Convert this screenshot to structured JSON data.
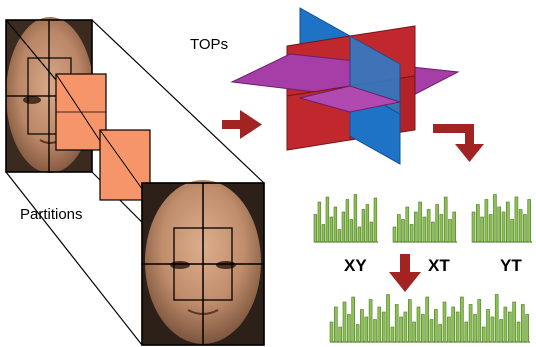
{
  "labels": {
    "tops": "TOPs",
    "partitions": "Partitions",
    "planes": [
      "XY",
      "XT",
      "YT"
    ]
  },
  "colors": {
    "face_skin": "#b98666",
    "face_dark": "#6e4a34",
    "partition_fill": "#f7956a",
    "plane_red": "#c0282e",
    "plane_blue": "#1f73c6",
    "plane_purple": "#a73ea7",
    "arrow": "#a32323",
    "histogram_bar": "#8cc153",
    "histogram_bar_dark": "#4f7a29"
  },
  "histograms": {
    "xy": [
      0.55,
      0.8,
      0.35,
      0.9,
      0.5,
      0.7,
      0.25,
      0.6,
      0.85,
      0.45,
      0.95,
      0.3,
      0.65,
      0.75,
      0.4,
      0.88
    ],
    "xt": [
      0.3,
      0.55,
      0.45,
      0.7,
      0.35,
      0.6,
      0.8,
      0.5,
      0.65,
      0.4,
      0.75,
      0.55,
      0.9,
      0.45,
      0.6
    ],
    "yt": [
      0.6,
      0.75,
      0.5,
      0.85,
      0.55,
      0.95,
      0.7,
      0.6,
      0.8,
      0.45,
      0.9,
      0.65,
      0.55,
      0.85
    ],
    "concat": [
      0.4,
      0.7,
      0.3,
      0.8,
      0.55,
      0.9,
      0.35,
      0.65,
      0.5,
      0.85,
      0.45,
      0.7,
      0.6,
      0.95,
      0.3,
      0.75,
      0.5,
      0.6,
      0.85,
      0.4,
      0.7,
      0.55,
      0.9,
      0.45,
      0.65,
      0.35,
      0.8,
      0.5,
      0.7,
      0.6,
      0.9,
      0.4,
      0.75,
      0.55,
      0.85,
      0.3,
      0.65,
      0.5,
      0.95,
      0.45,
      0.7,
      0.6,
      0.8,
      0.4,
      0.75,
      0.55
    ]
  }
}
